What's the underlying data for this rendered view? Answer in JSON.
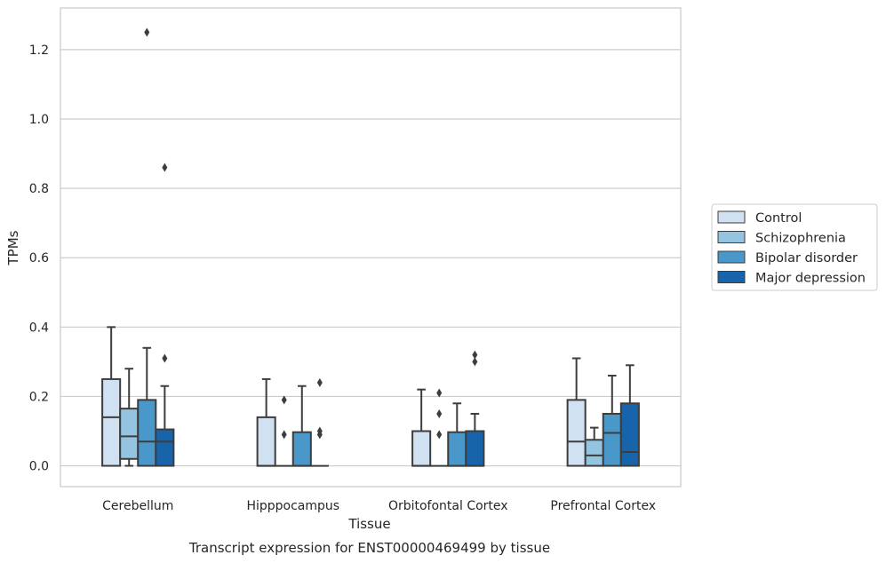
{
  "chart_data": {
    "type": "box",
    "title": "",
    "caption": "Transcript expression for ENST00000469499 by tissue",
    "xlabel": "Tissue",
    "ylabel": "TPMs",
    "ylim": [
      -0.06,
      1.32
    ],
    "yticks": [
      "0.0",
      "0.2",
      "0.4",
      "0.6",
      "0.8",
      "1.0",
      "1.2"
    ],
    "grid": true,
    "legend_position": "right",
    "categories": [
      "Cerebellum",
      "Hipppocampus",
      "Orbitofontal Cortex",
      "Prefrontal Cortex"
    ],
    "series": [
      {
        "name": "Control",
        "color": "#d0e1f2",
        "boxes": [
          {
            "whislo": 0.0,
            "q1": 0.0,
            "med": 0.14,
            "q3": 0.25,
            "whishi": 0.4,
            "fliers": []
          },
          {
            "whislo": 0.0,
            "q1": 0.0,
            "med": 0.0,
            "q3": 0.14,
            "whishi": 0.25,
            "fliers": []
          },
          {
            "whislo": 0.0,
            "q1": 0.0,
            "med": 0.0,
            "q3": 0.1,
            "whishi": 0.22,
            "fliers": []
          },
          {
            "whislo": 0.0,
            "q1": 0.0,
            "med": 0.07,
            "q3": 0.19,
            "whishi": 0.31,
            "fliers": []
          }
        ]
      },
      {
        "name": "Schizophrenia",
        "color": "#94c4df",
        "boxes": [
          {
            "whislo": 0.0,
            "q1": 0.02,
            "med": 0.085,
            "q3": 0.165,
            "whishi": 0.28,
            "fliers": []
          },
          {
            "whislo": 0.0,
            "q1": 0.0,
            "med": 0.0,
            "q3": 0.0,
            "whishi": 0.0,
            "fliers": [
              0.09,
              0.19
            ]
          },
          {
            "whislo": 0.0,
            "q1": 0.0,
            "med": 0.0,
            "q3": 0.0,
            "whishi": 0.0,
            "fliers": [
              0.09,
              0.15,
              0.21
            ]
          },
          {
            "whislo": 0.0,
            "q1": 0.0,
            "med": 0.03,
            "q3": 0.075,
            "whishi": 0.11,
            "fliers": []
          }
        ]
      },
      {
        "name": "Bipolar disorder",
        "color": "#4a98c9",
        "boxes": [
          {
            "whislo": 0.0,
            "q1": 0.0,
            "med": 0.07,
            "q3": 0.19,
            "whishi": 0.34,
            "fliers": [
              1.25
            ]
          },
          {
            "whislo": 0.0,
            "q1": 0.0,
            "med": 0.0,
            "q3": 0.097,
            "whishi": 0.23,
            "fliers": []
          },
          {
            "whislo": 0.0,
            "q1": 0.0,
            "med": 0.0,
            "q3": 0.097,
            "whishi": 0.18,
            "fliers": []
          },
          {
            "whislo": 0.0,
            "q1": 0.0,
            "med": 0.095,
            "q3": 0.15,
            "whishi": 0.26,
            "fliers": []
          }
        ]
      },
      {
        "name": "Major depression",
        "color": "#1764ab",
        "boxes": [
          {
            "whislo": 0.0,
            "q1": 0.0,
            "med": 0.07,
            "q3": 0.105,
            "whishi": 0.23,
            "fliers": [
              0.31,
              0.86
            ]
          },
          {
            "whislo": 0.0,
            "q1": 0.0,
            "med": 0.0,
            "q3": 0.0,
            "whishi": 0.0,
            "fliers": [
              0.09,
              0.1,
              0.24
            ]
          },
          {
            "whislo": 0.0,
            "q1": 0.0,
            "med": 0.0,
            "q3": 0.1,
            "whishi": 0.15,
            "fliers": [
              0.3,
              0.32
            ]
          },
          {
            "whislo": 0.0,
            "q1": 0.0,
            "med": 0.04,
            "q3": 0.18,
            "whishi": 0.29,
            "fliers": []
          }
        ]
      }
    ]
  }
}
